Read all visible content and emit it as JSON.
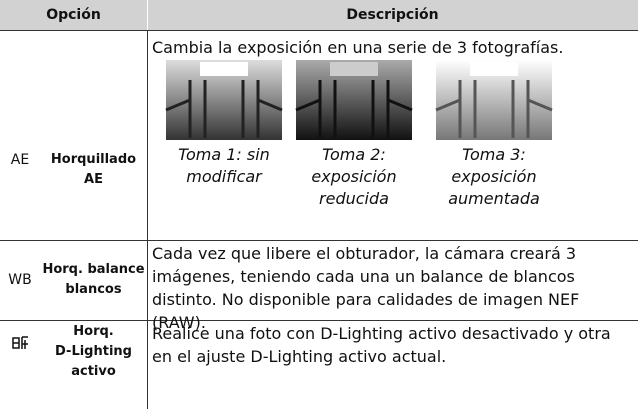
{
  "table": {
    "header": [
      "Opción",
      "Descripción"
    ],
    "rows": [
      {
        "icon": "AE",
        "option": [
          "Horquillado AE"
        ],
        "description": "Cambia la exposición en una serie de 3 fotografías.",
        "captions": [
          [
            "Toma 1: sin",
            "modificar"
          ],
          [
            "Toma 2:",
            "exposición",
            "reducida"
          ],
          [
            "Toma 3:",
            "exposición",
            "aumentada"
          ]
        ]
      },
      {
        "icon": "WB",
        "option": [
          "Horq. balance",
          "blancos"
        ],
        "description": "Cada vez que libere el obturador, la cámara creará 3 imágenes, teniendo cada una un balance de blancos distinto.  No disponible para calidades de imagen NEF (RAW)."
      },
      {
        "option": [
          "Horq.",
          "D-Lighting",
          "activo"
        ],
        "description": "Realice una foto con D-Lighting activo desactivado y otra en el ajuste D-Lighting activo actual."
      }
    ]
  }
}
